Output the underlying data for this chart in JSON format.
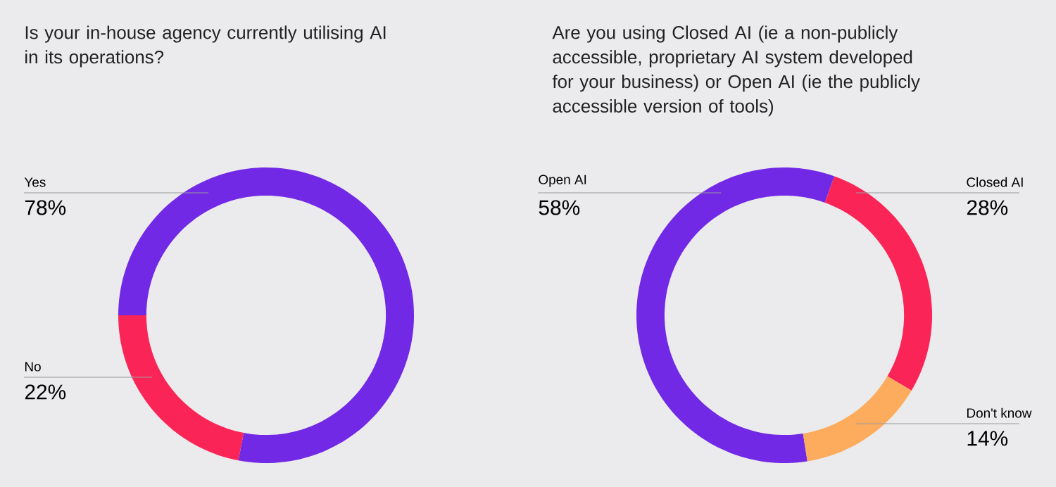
{
  "chart_data": [
    {
      "type": "donut",
      "title": "Is your in-house agency currently utilising AI in its operations?",
      "categories": [
        "Yes",
        "No"
      ],
      "values": [
        78,
        22
      ],
      "colors": [
        "#7229e6",
        "#fb2456"
      ],
      "value_labels": [
        "78%",
        "22%"
      ]
    },
    {
      "type": "donut",
      "title": "Are you using Closed AI (ie a non-publicly accessible, proprietary AI system developed for your business) or Open AI (ie the publicly accessible version of tools)",
      "categories": [
        "Open AI",
        "Closed AI",
        "Don't know"
      ],
      "values": [
        58,
        28,
        14
      ],
      "colors": [
        "#7229e6",
        "#fb2456",
        "#fdab5c"
      ],
      "value_labels": [
        "58%",
        "28%",
        "14%"
      ]
    }
  ]
}
